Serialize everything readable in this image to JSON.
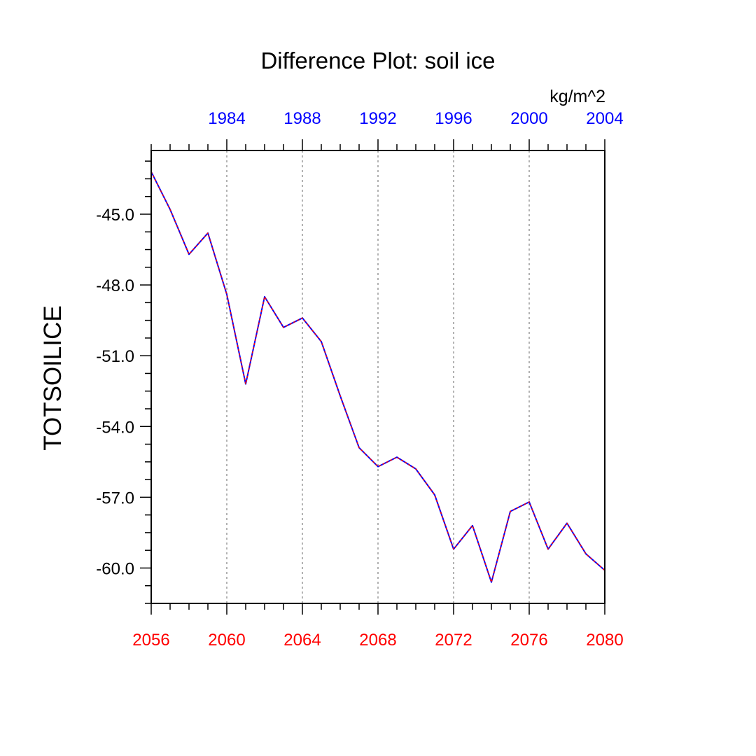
{
  "chart_data": {
    "type": "line",
    "title": "Difference Plot: soil ice",
    "units_label": "kg/m^2",
    "ylabel": "TOTSOILICE",
    "xlabel": "",
    "x": [
      2056,
      2057,
      2058,
      2059,
      2060,
      2061,
      2062,
      2063,
      2064,
      2065,
      2066,
      2067,
      2068,
      2069,
      2070,
      2071,
      2072,
      2073,
      2074,
      2075,
      2076,
      2077,
      2078,
      2079,
      2080
    ],
    "series": [
      {
        "color": "#0000ff",
        "overlay_color": "#ff0000",
        "style": "dashed-over-solid",
        "values": [
          -43.2,
          -44.8,
          -46.7,
          -45.8,
          -48.4,
          -52.2,
          -48.5,
          -49.8,
          -49.4,
          -50.4,
          -52.7,
          -54.9,
          -55.7,
          -55.3,
          -55.8,
          -56.9,
          -59.2,
          -58.2,
          -60.6,
          -57.6,
          -57.2,
          -59.2,
          -58.1,
          -59.4,
          -60.1
        ]
      }
    ],
    "xlim": [
      2056,
      2080
    ],
    "ylim": [
      -61.5,
      -42.3
    ],
    "bottom_axis": {
      "color": "#ff0000",
      "major_ticks": [
        2056,
        2060,
        2064,
        2068,
        2072,
        2076,
        2080
      ],
      "tick_labels": [
        "2056",
        "2060",
        "2064",
        "2068",
        "2072",
        "2076",
        "2080"
      ]
    },
    "top_axis": {
      "color": "#0000ff",
      "offset_years": -76,
      "major_ticks": [
        1984,
        1988,
        1992,
        1996,
        2000,
        2004
      ],
      "tick_labels": [
        "1984",
        "1988",
        "1992",
        "1996",
        "2000",
        "2004"
      ]
    },
    "y_major_ticks": [
      -45.0,
      -48.0,
      -51.0,
      -54.0,
      -57.0,
      -60.0
    ],
    "y_tick_labels": [
      "-45.0",
      "-48.0",
      "-51.0",
      "-54.0",
      "-57.0",
      "-60.0"
    ],
    "grid": "vertical dotted at major x ticks"
  }
}
